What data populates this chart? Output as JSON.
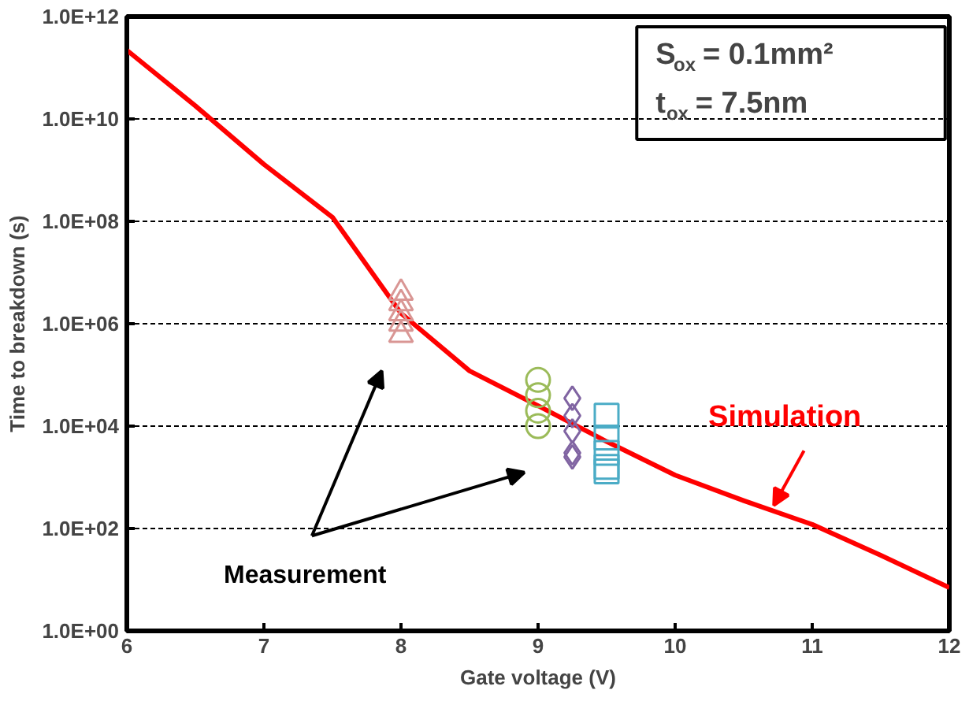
{
  "chart_data": {
    "type": "line",
    "xlabel": "Gate voltage (V)",
    "ylabel": "Time to breakdown (s)",
    "xlim": [
      6,
      12
    ],
    "xticks": [
      6,
      7,
      8,
      9,
      10,
      11,
      12
    ],
    "ylim": [
      1,
      1000000000000.0
    ],
    "yticks": [
      {
        "value": 1,
        "label": "1.0E+00"
      },
      {
        "value": 100,
        "label": "1.0E+02"
      },
      {
        "value": 10000,
        "label": "1.0E+04"
      },
      {
        "value": 1000000,
        "label": "1.0E+06"
      },
      {
        "value": 100000000,
        "label": "1.0E+08"
      },
      {
        "value": 10000000000,
        "label": "1.0E+10"
      },
      {
        "value": 1000000000000,
        "label": "1.0E+12"
      }
    ],
    "log": "y",
    "grid": "y",
    "series": [
      {
        "name": "Simulation",
        "color": "#ff0000",
        "x": [
          6,
          6.5,
          7,
          7.5,
          8,
          8.5,
          9,
          9.5,
          10,
          10.5,
          11,
          11.5,
          12
        ],
        "values": [
          220000000000.0,
          18000000000.0,
          1300000000.0,
          120000000.0,
          1600000.0,
          120000.0,
          25000.0,
          5000.0,
          1100.0,
          350,
          120,
          30,
          7
        ]
      },
      {
        "type": "scatter",
        "marker": "triangle",
        "color": "#d99694",
        "x": [
          8,
          8,
          8,
          8,
          8
        ],
        "values": [
          4000000.0,
          2500000.0,
          1600000.0,
          1000000.0,
          600000.0
        ]
      },
      {
        "type": "scatter",
        "marker": "circle",
        "color": "#9bbb59",
        "x": [
          9,
          9,
          9,
          9
        ],
        "values": [
          80000.0,
          40000.0,
          20000.0,
          10000.0
        ]
      },
      {
        "type": "scatter",
        "marker": "diamond",
        "color": "#8064a2",
        "x": [
          9.25,
          9.25,
          9.25,
          9.25,
          9.25
        ],
        "values": [
          35000.0,
          16000.0,
          8000.0,
          3000.0,
          2500.0
        ]
      },
      {
        "type": "scatter",
        "marker": "square",
        "color": "#4bacc6",
        "x": [
          9.5,
          9.5,
          9.5,
          9.5,
          9.5
        ],
        "values": [
          16000.0,
          6000.0,
          3000.0,
          1600.0,
          1300.0
        ]
      }
    ],
    "annotations": [
      "Measurement",
      "S$_{ox}$ = 0.1mm²",
      "t$_{ox}$ = 7.5nm"
    ]
  }
}
